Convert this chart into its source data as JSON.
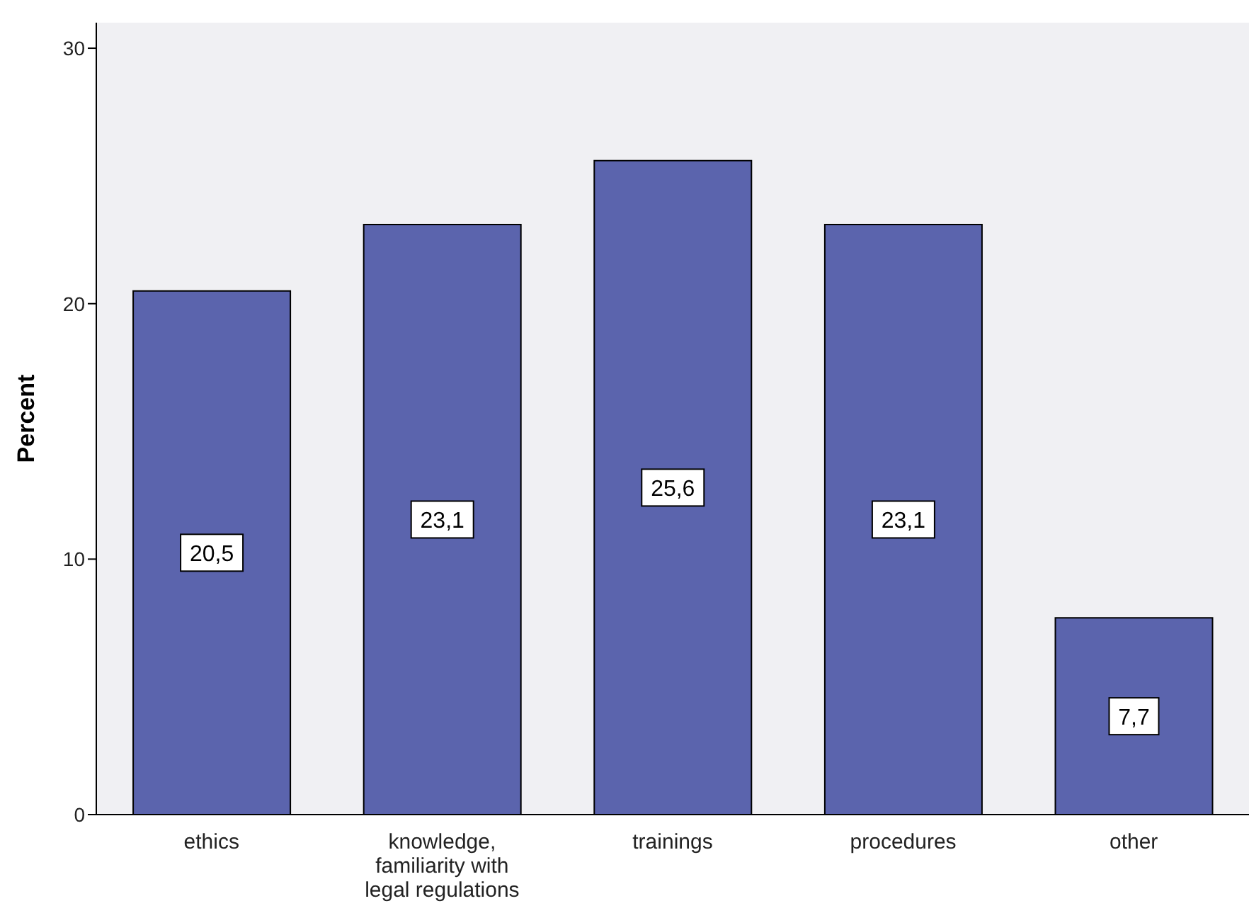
{
  "chart_data": {
    "type": "bar",
    "ylabel": "Percent",
    "categories": [
      "ethics",
      "knowledge, familiarity with legal regulations",
      "trainings",
      "procedures",
      "other"
    ],
    "values": [
      20.5,
      23.1,
      25.6,
      23.1,
      7.7
    ],
    "value_labels": [
      "20,5",
      "23,1",
      "25,6",
      "23,1",
      "7,7"
    ],
    "color": "#5b64ad",
    "ylim": [
      0,
      31
    ],
    "yticks": [
      0,
      10,
      20,
      30
    ],
    "grid": false,
    "legend": false
  }
}
